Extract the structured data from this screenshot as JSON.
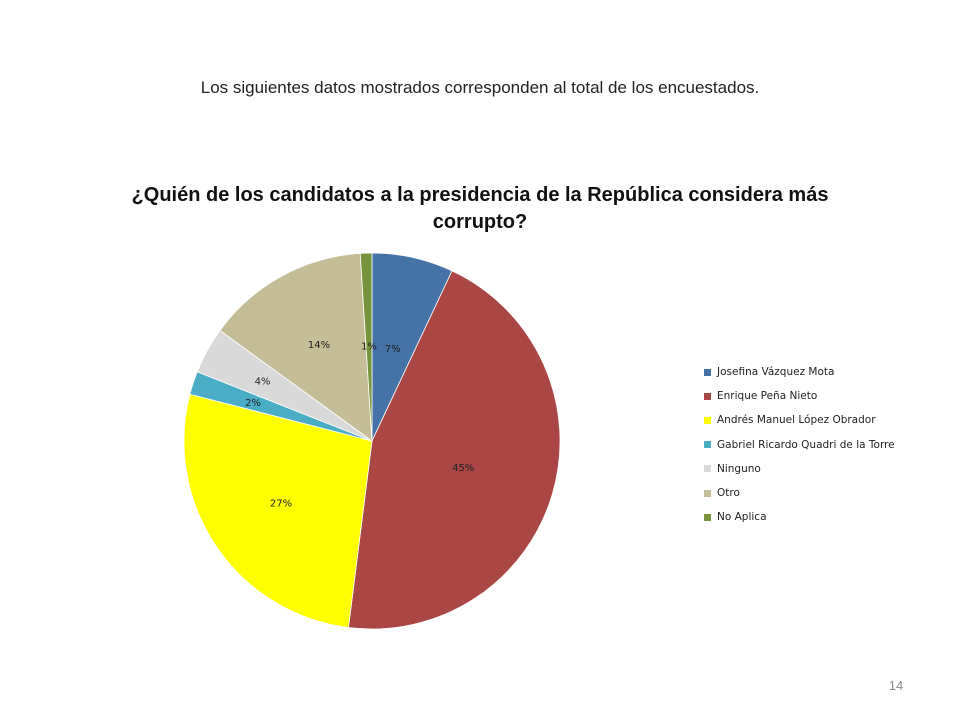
{
  "slide": {
    "intro_text": "Los siguientes datos mostrados corresponden  al total de los encuestados.",
    "page_number": "14"
  },
  "chart_data": {
    "type": "pie",
    "title": "¿Quién de los candidatos a la presidencia de la República considera más corrupto?",
    "legend_position": "right",
    "slices": [
      {
        "name": "Josefina Vázquez Mota",
        "value": 7,
        "label": "7%",
        "color": "#4572A7"
      },
      {
        "name": "Enrique Peña Nieto",
        "value": 45,
        "label": "45%",
        "color": "#AA4643"
      },
      {
        "name": "Andrés Manuel López Obrador",
        "value": 27,
        "label": "27%",
        "color": "#FFFF00"
      },
      {
        "name": "Gabriel Ricardo Quadri de la Torre",
        "value": 2,
        "label": "2%",
        "color": "#4BACC6"
      },
      {
        "name": "Ninguno",
        "value": 4,
        "label": "4%",
        "color": "#D9D9D9"
      },
      {
        "name": "Otro",
        "value": 14,
        "label": "14%",
        "color": "#C4BD97"
      },
      {
        "name": "No Aplica",
        "value": 1,
        "label": "1%",
        "color": "#77933C"
      }
    ]
  }
}
